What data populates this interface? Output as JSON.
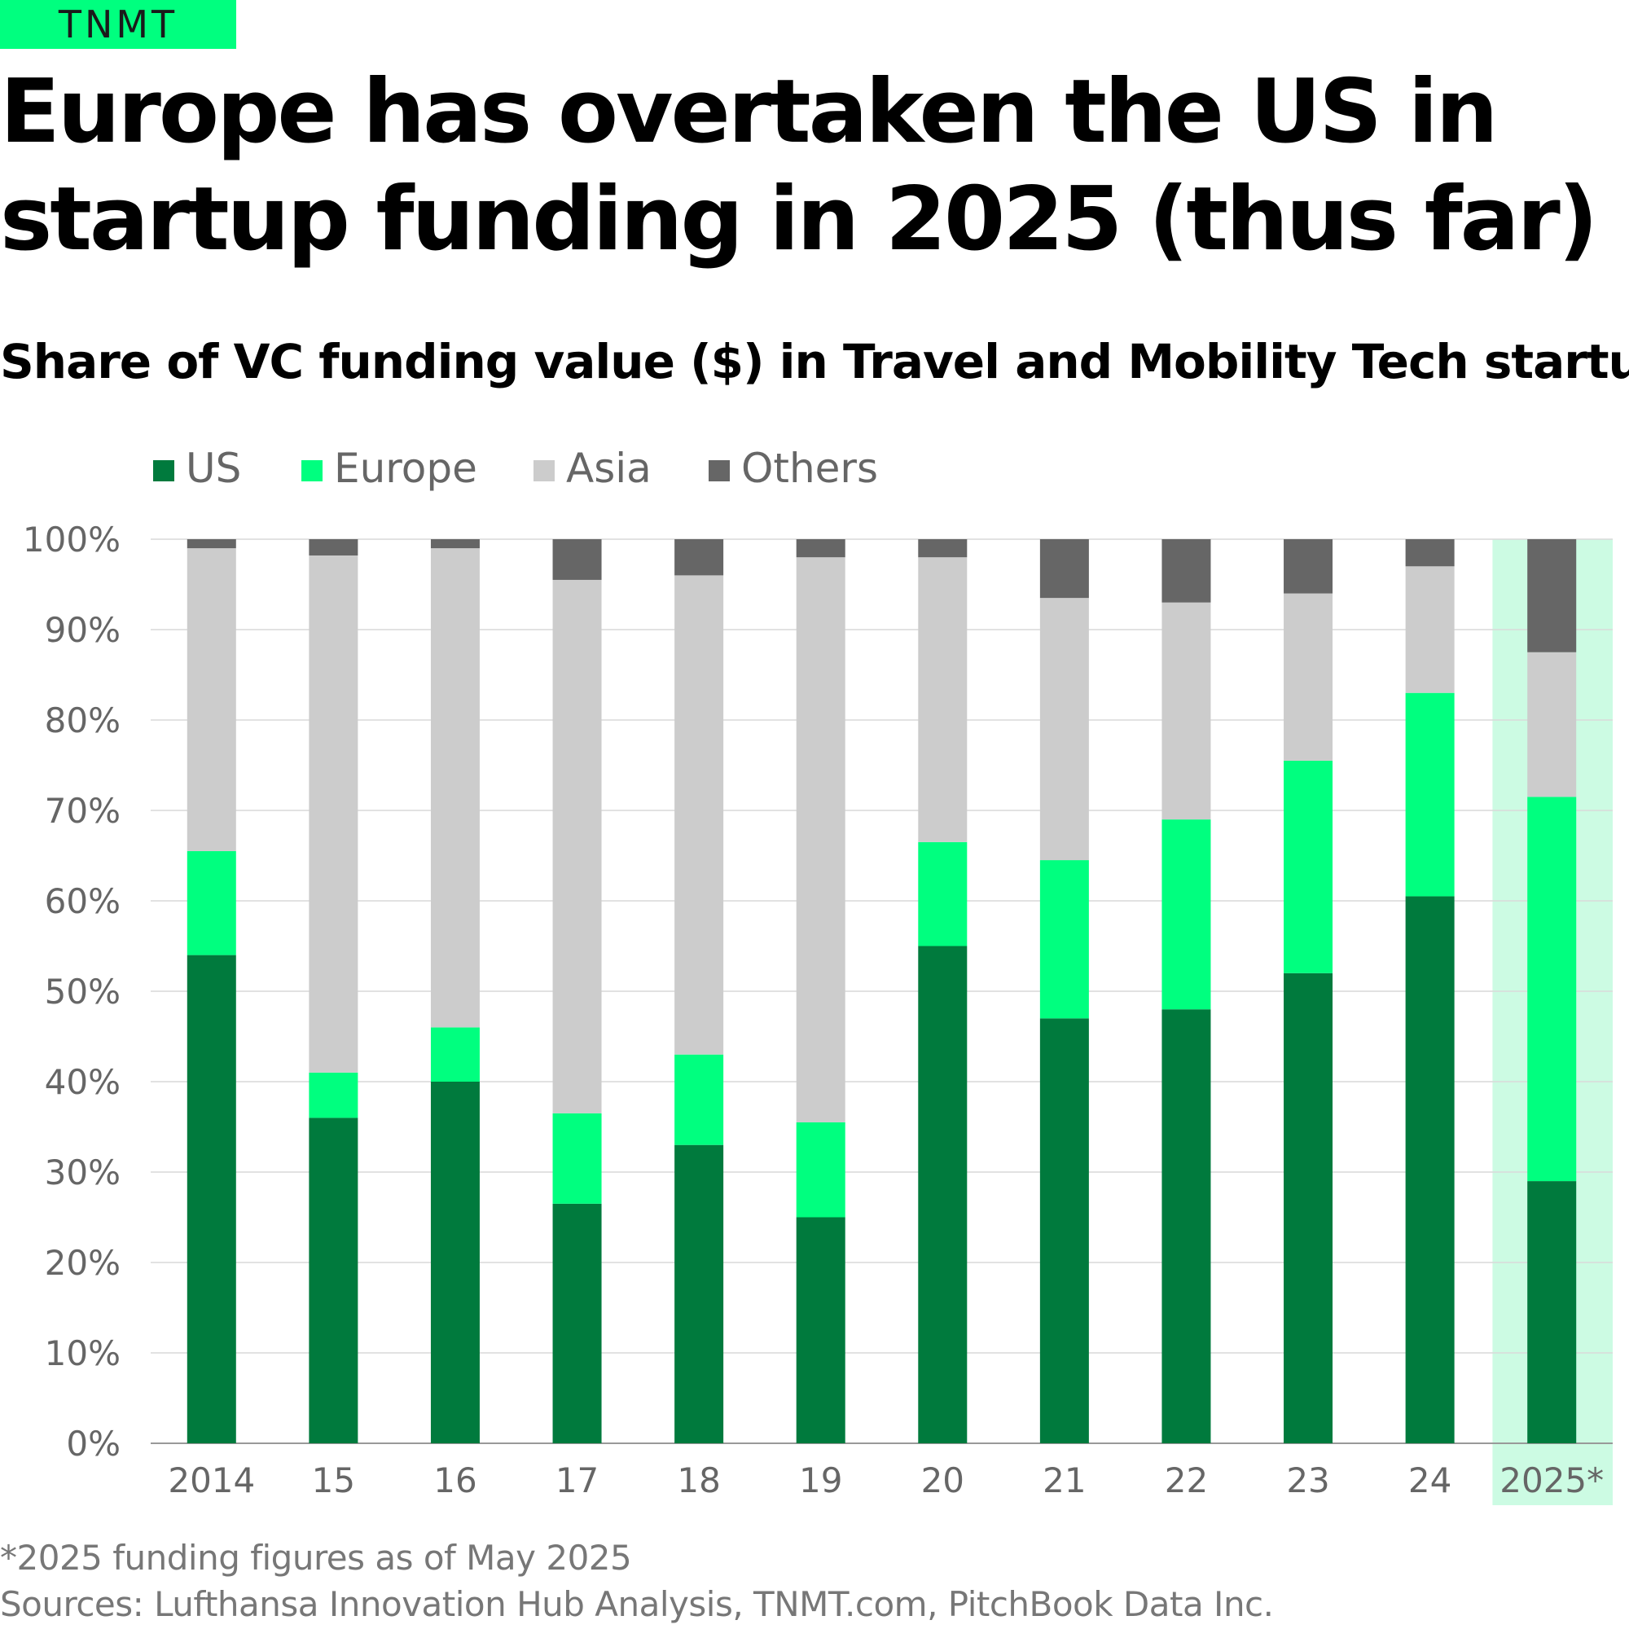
{
  "brand": {
    "logo_text": "TNMT",
    "accent_color": "#00ff7f"
  },
  "header": {
    "title": "Europe has overtaken the US in startup funding in 2025 (thus far)"
  },
  "footer": {
    "footnote": "*2025 funding figures as of May 2025",
    "sources": "Sources: Lufthansa Innovation Hub Analysis, TNMT.com, PitchBook Data Inc."
  },
  "chart_data": {
    "type": "bar",
    "stacked": true,
    "title": "Share of VC funding value ($) in Travel and Mobility Tech startups",
    "xlabel": "",
    "ylabel": "",
    "ylim": [
      0,
      100
    ],
    "yticks": [
      "0%",
      "10%",
      "20%",
      "30%",
      "40%",
      "50%",
      "60%",
      "70%",
      "80%",
      "90%",
      "100%"
    ],
    "grid": true,
    "legend_position": "top-left",
    "categories": [
      "2014",
      "15",
      "16",
      "17",
      "18",
      "19",
      "20",
      "21",
      "22",
      "23",
      "24",
      "2025*"
    ],
    "highlight_category": "2025*",
    "highlight_color": "#ccfbe3",
    "series": [
      {
        "name": "US",
        "color": "#007a3d",
        "values": [
          54,
          36,
          40,
          26.5,
          33,
          25,
          55,
          47,
          48,
          52,
          60.5,
          29
        ]
      },
      {
        "name": "Europe",
        "color": "#00ff7f",
        "values": [
          11.5,
          5,
          6,
          10,
          10,
          10.5,
          11.5,
          17.5,
          21,
          23.5,
          22.5,
          42.5
        ]
      },
      {
        "name": "Asia",
        "color": "#cccccc",
        "values": [
          33.5,
          57.2,
          53,
          59,
          53,
          62.5,
          31.5,
          29,
          24,
          18.5,
          14,
          16
        ]
      },
      {
        "name": "Others",
        "color": "#666666",
        "values": [
          1,
          1.8,
          1,
          4.5,
          4,
          2,
          2,
          6.5,
          7,
          6,
          3,
          12.5
        ]
      }
    ]
  }
}
